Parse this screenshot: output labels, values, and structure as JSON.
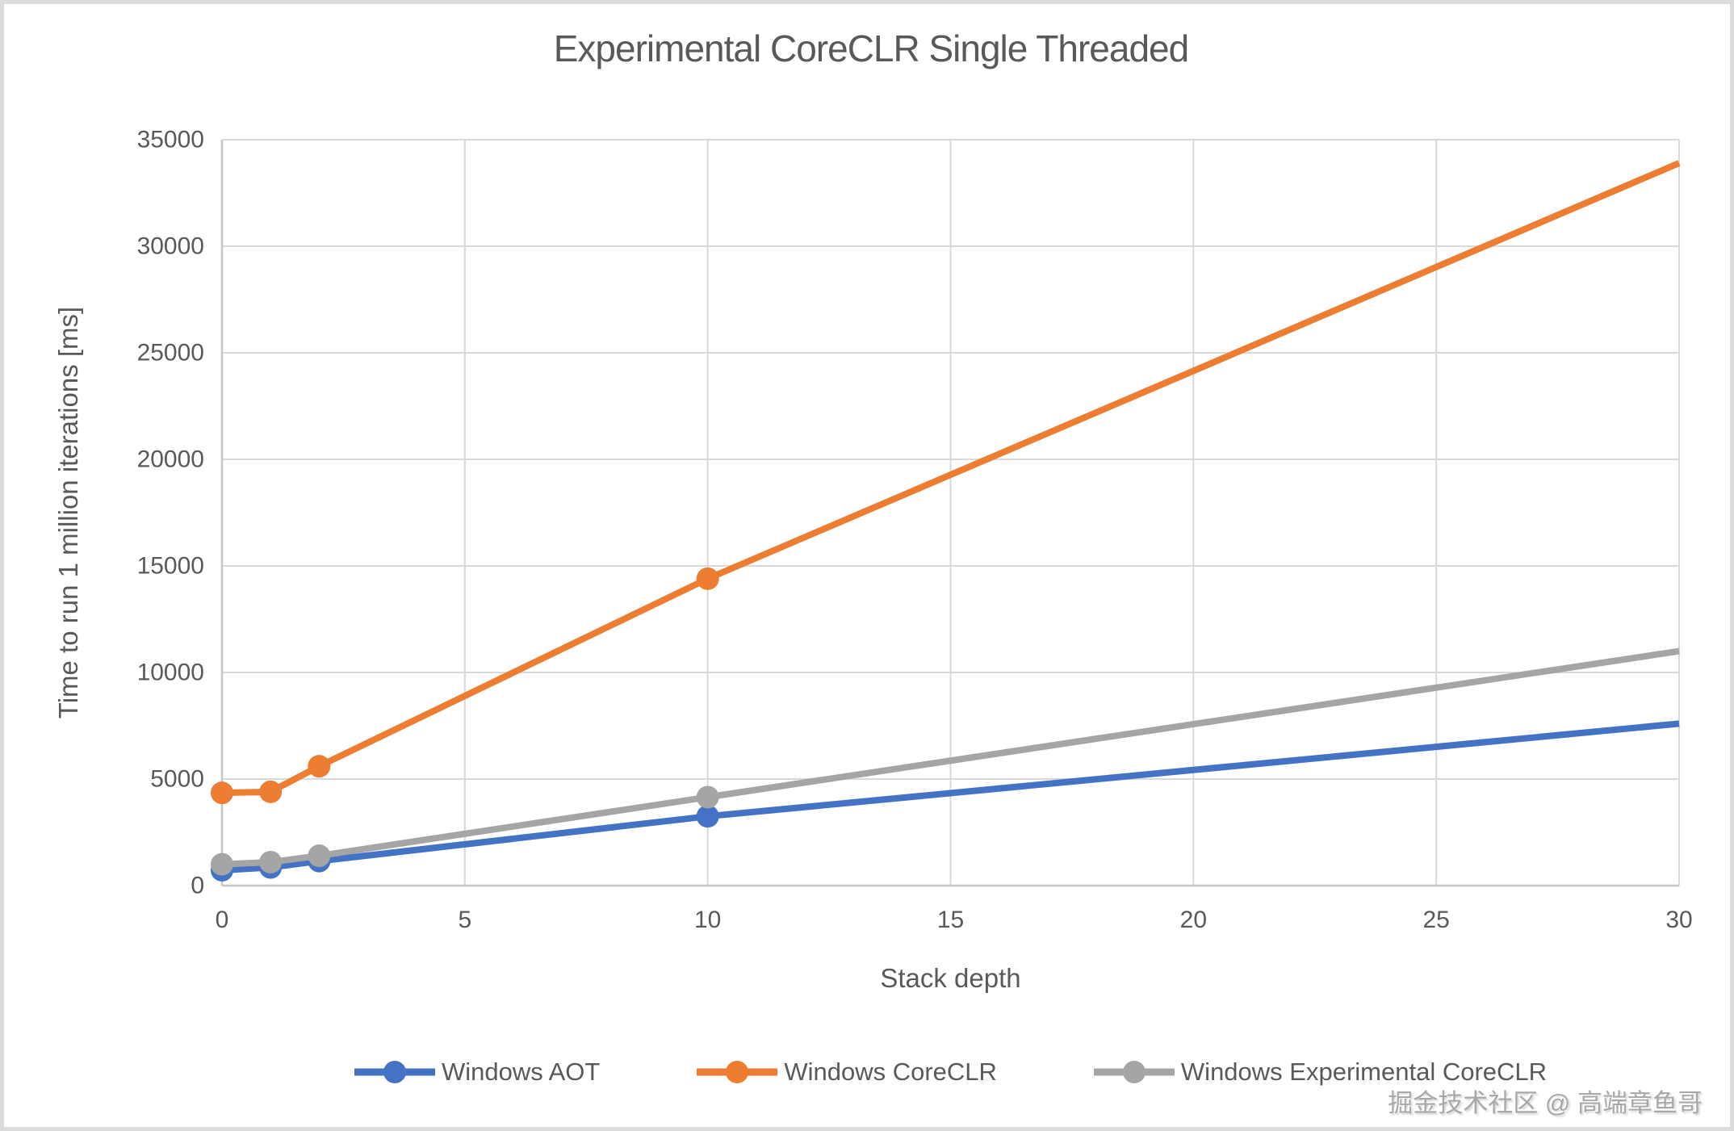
{
  "page": {
    "watermark": "掘金技术社区 @ 高端章鱼哥"
  },
  "chart_data": {
    "type": "line",
    "title": "Experimental CoreCLR Single Threaded",
    "xlabel": "Stack depth",
    "ylabel": "Time to run 1 million iterations [ms]",
    "xlim": [
      0,
      30
    ],
    "ylim": [
      0,
      35000
    ],
    "x_ticks": [
      0,
      5,
      10,
      15,
      20,
      25,
      30
    ],
    "y_ticks": [
      0,
      5000,
      10000,
      15000,
      20000,
      25000,
      30000,
      35000
    ],
    "grid": true,
    "legend_position": "bottom",
    "series": [
      {
        "name": "Windows AOT",
        "color": "#4472C4",
        "x": [
          0,
          1,
          2,
          10,
          30
        ],
        "y": [
          720,
          850,
          1150,
          3250,
          7600
        ],
        "markers_at": [
          0,
          1,
          2,
          10
        ]
      },
      {
        "name": "Windows CoreCLR",
        "color": "#ED7D31",
        "x": [
          0,
          1,
          2,
          10,
          30
        ],
        "y": [
          4350,
          4400,
          5600,
          14400,
          33900
        ],
        "markers_at": [
          0,
          1,
          2,
          10
        ]
      },
      {
        "name": "Windows Experimental CoreCLR",
        "color": "#A5A5A5",
        "x": [
          0,
          1,
          2,
          10,
          30
        ],
        "y": [
          1000,
          1100,
          1400,
          4150,
          11000
        ],
        "markers_at": [
          0,
          1,
          2,
          10
        ]
      }
    ],
    "colors": {
      "text": "#595959",
      "gridline": "#D9D9D9",
      "axis": "#C6C6C6",
      "background": "#FFFFFF"
    }
  }
}
